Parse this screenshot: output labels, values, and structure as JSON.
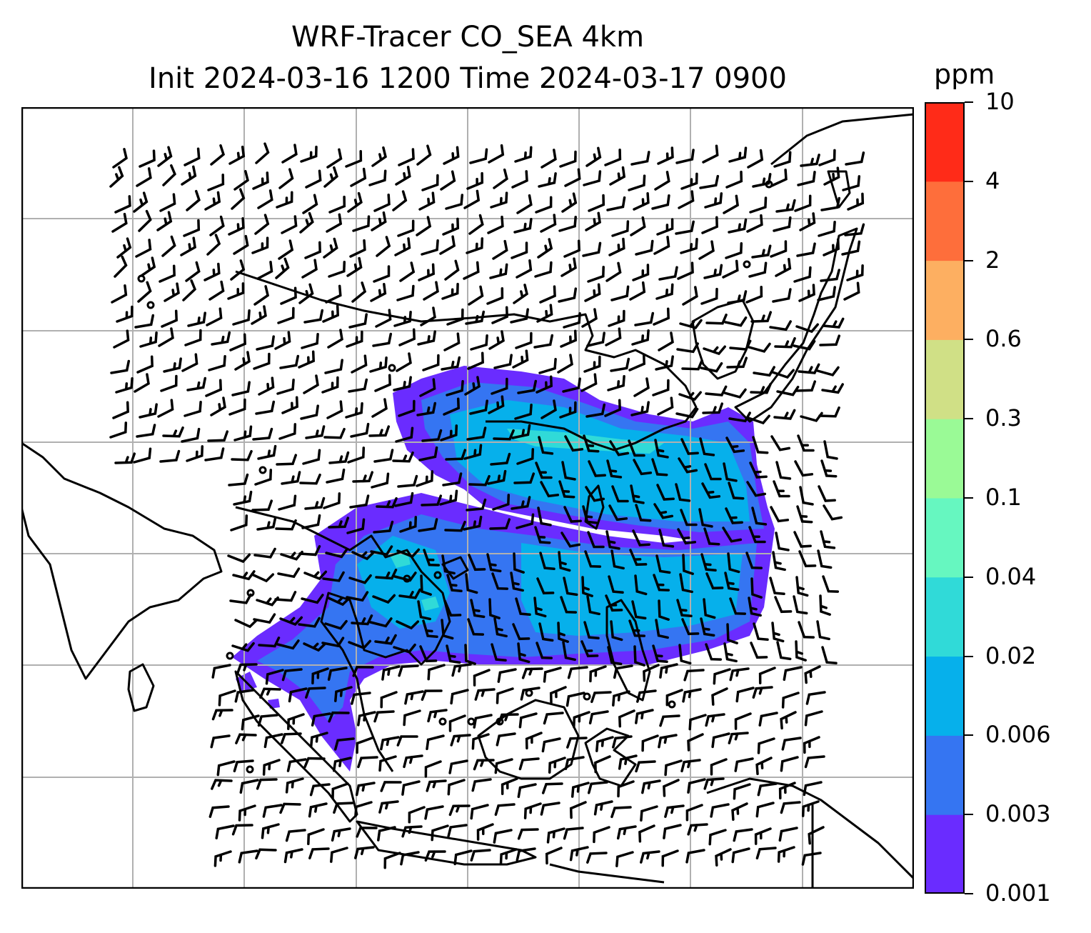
{
  "title": {
    "line1": "WRF-Tracer CO_SEA 4km",
    "line2": "Init 2024-03-16 1200 Time 2024-03-17 0900"
  },
  "colorbar": {
    "unit": "ppm",
    "ticks": [
      "0.001",
      "0.003",
      "0.006",
      "0.02",
      "0.04",
      "0.1",
      "0.3",
      "0.6",
      "2",
      "4",
      "10"
    ],
    "colors": [
      "#6a2cff",
      "#3575f2",
      "#06b0eb",
      "#30dad8",
      "#66f7c0",
      "#9afa96",
      "#d0e086",
      "#fdaf61",
      "#fe6e3b",
      "#ff2b18"
    ]
  },
  "map": {
    "plume_outline_color": "#6a2cff",
    "plume_inner_color": "#3575f2",
    "plume_core_color": "#06b0eb",
    "plume_hot_color": "#30dad8",
    "coastline_color": "#000000",
    "gridline_color": "#b0b0b0",
    "wind_barb_color": "#000000"
  }
}
